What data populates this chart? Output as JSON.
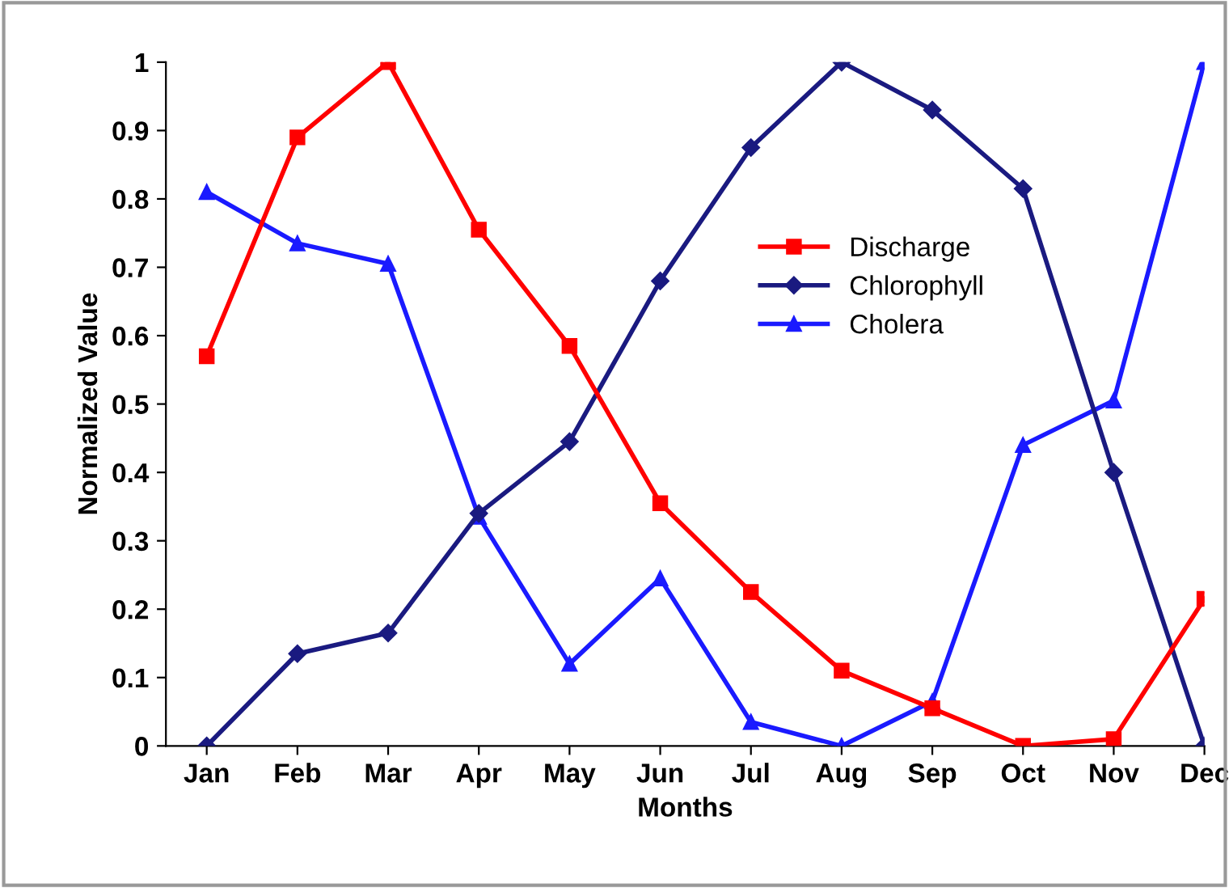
{
  "chart_data": {
    "type": "line",
    "xlabel": "Months",
    "ylabel": "Normalized Value",
    "categories": [
      "Jan",
      "Feb",
      "Mar",
      "Apr",
      "May",
      "Jun",
      "Jul",
      "Aug",
      "Sep",
      "Oct",
      "Nov",
      "Dec"
    ],
    "series": [
      {
        "name": "Discharge",
        "color": "#ff0000",
        "marker": "square",
        "values": [
          0.57,
          0.89,
          1.0,
          0.755,
          0.585,
          0.355,
          0.225,
          0.11,
          0.055,
          0.0,
          0.01,
          0.215
        ]
      },
      {
        "name": "Chlorophyll",
        "color": "#1a1a80",
        "marker": "diamond",
        "values": [
          0.0,
          0.135,
          0.165,
          0.34,
          0.445,
          0.68,
          0.875,
          1.0,
          0.93,
          0.815,
          0.4,
          0.0
        ]
      },
      {
        "name": "Cholera",
        "color": "#1a1aff",
        "marker": "triangle",
        "values": [
          0.81,
          0.735,
          0.705,
          0.335,
          0.12,
          0.245,
          0.035,
          0.0,
          0.065,
          0.44,
          0.505,
          1.0
        ]
      }
    ],
    "ylim": [
      0,
      1
    ],
    "yticks": [
      0,
      0.1,
      0.2,
      0.3,
      0.4,
      0.5,
      0.6,
      0.7,
      0.8,
      0.9,
      1
    ],
    "grid": false,
    "legend": "center right",
    "line_style": "solid"
  }
}
